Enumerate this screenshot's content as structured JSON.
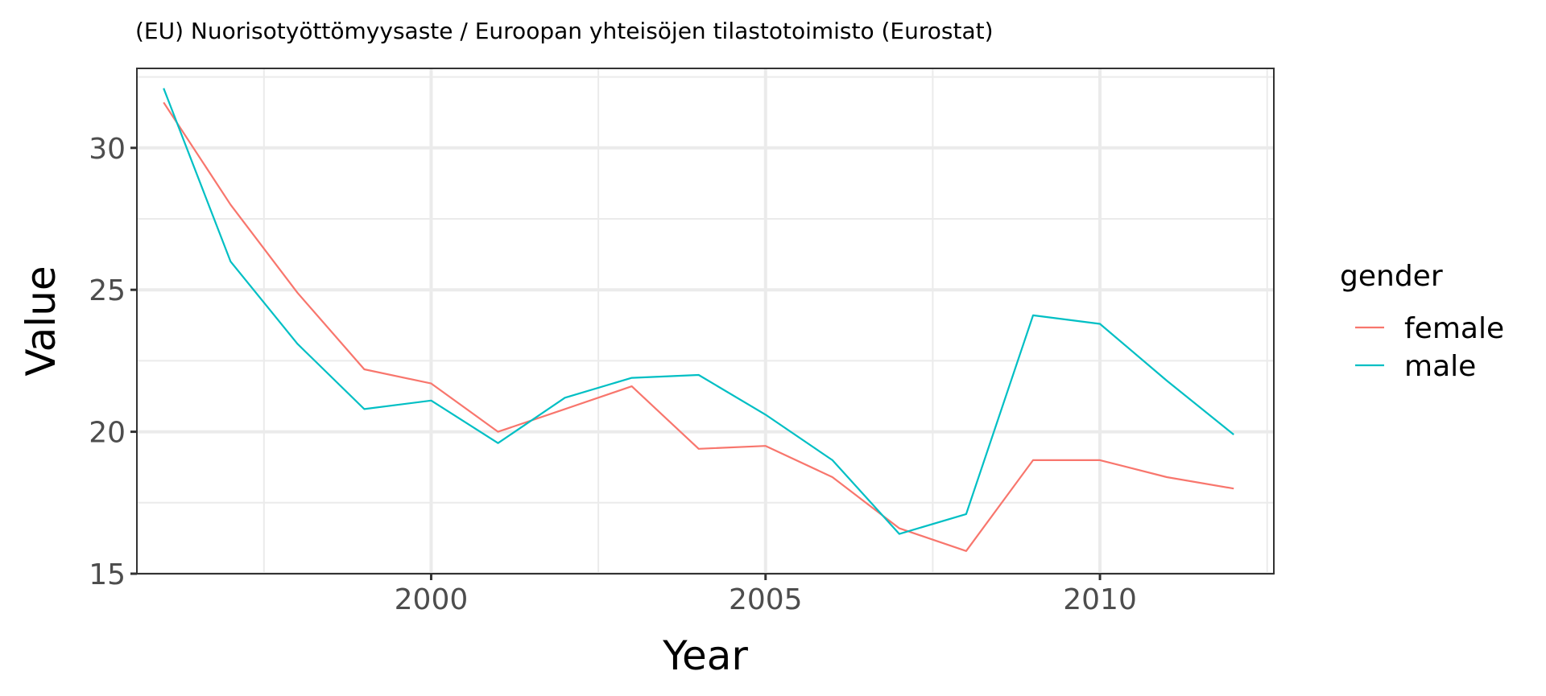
{
  "chart_data": {
    "type": "line",
    "title": "(EU) Nuorisotyöttömyysaste / Euroopan yhteisöjen tilastotoimisto (Eurostat)",
    "xlabel": "Year",
    "ylabel": "Value",
    "x": [
      1996,
      1997,
      1998,
      1999,
      2000,
      2001,
      2002,
      2003,
      2004,
      2005,
      2006,
      2007,
      2008,
      2009,
      2010,
      2011,
      2012
    ],
    "xlim": [
      1995.6,
      2012.6
    ],
    "ylim": [
      15,
      32.8
    ],
    "x_ticks": [
      2000,
      2005,
      2010
    ],
    "x_tick_labels": [
      "2000",
      "2005",
      "2010"
    ],
    "y_ticks": [
      15,
      20,
      25,
      30
    ],
    "y_tick_labels": [
      "15",
      "20",
      "25",
      "30"
    ],
    "grid": true,
    "legend_title": "gender",
    "legend_position": "right",
    "series": [
      {
        "name": "female",
        "color": "#F8766D",
        "values": [
          31.6,
          28.0,
          24.9,
          22.2,
          21.7,
          20.0,
          20.8,
          21.6,
          19.4,
          19.5,
          18.4,
          16.6,
          15.8,
          19.0,
          19.0,
          18.4,
          18.0
        ]
      },
      {
        "name": "male",
        "color": "#00BFC4",
        "values": [
          32.1,
          26.0,
          23.1,
          20.8,
          21.1,
          19.6,
          21.2,
          21.9,
          22.0,
          20.6,
          19.0,
          16.4,
          17.1,
          24.1,
          23.8,
          21.8,
          19.9
        ]
      }
    ]
  }
}
